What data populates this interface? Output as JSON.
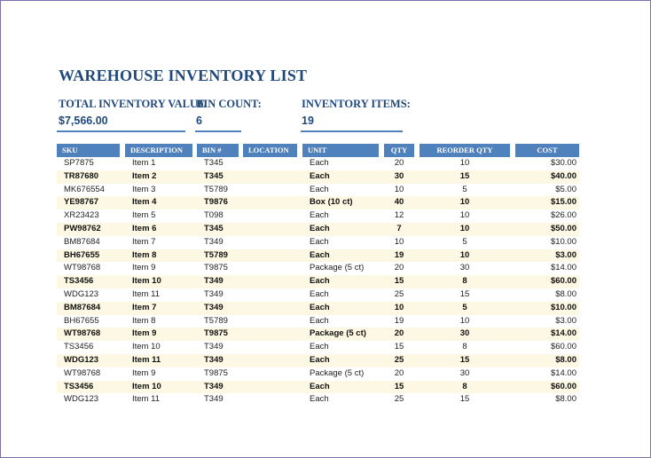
{
  "header": {
    "title": "WAREHOUSE INVENTORY LIST"
  },
  "summary": {
    "labels": [
      "TOTAL INVENTORY VALUE",
      "BIN COUNT:",
      "INVENTORY ITEMS:"
    ],
    "values": [
      "$7,566.00",
      "6",
      "19"
    ]
  },
  "table": {
    "columns": [
      "SKU",
      "DESCRIPTION",
      "BIN #",
      "LOCATION",
      "UNIT",
      "QTY",
      "REORDER QTY",
      "COST"
    ],
    "rows": [
      [
        "SP7875",
        "Item 1",
        "T345",
        "",
        "Each",
        "20",
        "10",
        "$30.00"
      ],
      [
        "TR87680",
        "Item 2",
        "T345",
        "",
        "Each",
        "30",
        "15",
        "$40.00"
      ],
      [
        "MK676554",
        "Item 3",
        "T5789",
        "",
        "Each",
        "10",
        "5",
        "$5.00"
      ],
      [
        "YE98767",
        "Item 4",
        "T9876",
        "",
        "Box (10 ct)",
        "40",
        "10",
        "$15.00"
      ],
      [
        "XR23423",
        "Item 5",
        "T098",
        "",
        "Each",
        "12",
        "10",
        "$26.00"
      ],
      [
        "PW98762",
        "Item 6",
        "T345",
        "",
        "Each",
        "7",
        "10",
        "$50.00"
      ],
      [
        "BM87684",
        "Item 7",
        "T349",
        "",
        "Each",
        "10",
        "5",
        "$10.00"
      ],
      [
        "BH67655",
        "Item 8",
        "T5789",
        "",
        "Each",
        "19",
        "10",
        "$3.00"
      ],
      [
        "WT98768",
        "Item 9",
        "T9875",
        "",
        "Package (5 ct)",
        "20",
        "30",
        "$14.00"
      ],
      [
        "TS3456",
        "Item 10",
        "T349",
        "",
        "Each",
        "15",
        "8",
        "$60.00"
      ],
      [
        "WDG123",
        "Item 11",
        "T349",
        "",
        "Each",
        "25",
        "15",
        "$8.00"
      ],
      [
        "BM87684",
        "Item 7",
        "T349",
        "",
        "Each",
        "10",
        "5",
        "$10.00"
      ],
      [
        "BH67655",
        "Item 8",
        "T5789",
        "",
        "Each",
        "19",
        "10",
        "$3.00"
      ],
      [
        "WT98768",
        "Item 9",
        "T9875",
        "",
        "Package (5 ct)",
        "20",
        "30",
        "$14.00"
      ],
      [
        "TS3456",
        "Item 10",
        "T349",
        "",
        "Each",
        "15",
        "8",
        "$60.00"
      ],
      [
        "WDG123",
        "Item 11",
        "T349",
        "",
        "Each",
        "25",
        "15",
        "$8.00"
      ],
      [
        "WT98768",
        "Item 9",
        "T9875",
        "",
        "Package (5 ct)",
        "20",
        "30",
        "$14.00"
      ],
      [
        "TS3456",
        "Item 10",
        "T349",
        "",
        "Each",
        "15",
        "8",
        "$60.00"
      ],
      [
        "WDG123",
        "Item 11",
        "T349",
        "",
        "Each",
        "25",
        "15",
        "$8.00"
      ]
    ]
  }
}
